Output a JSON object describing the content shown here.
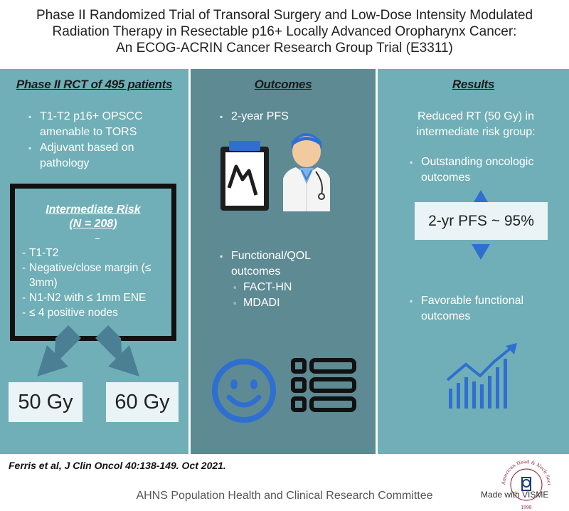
{
  "title": {
    "line1": "Phase II Randomized Trial of Transoral Surgery and Low-Dose Intensity Modulated",
    "line2": "Radiation Therapy in Resectable p16+ Locally Advanced Oropharynx Cancer:",
    "line3": "An ECOG-ACRIN Cancer Research Group Trial (E3311)"
  },
  "left": {
    "heading": "Phase II RCT of 495 patients",
    "bullets": [
      "T1-T2 p16+ OPSCC amenable to TORS",
      "Adjuvant based on pathology"
    ],
    "risk": {
      "heading_line1": "Intermediate Risk",
      "heading_line2": "(N = 208)",
      "items": [
        "T1-T2",
        "Negative/close margin (≤ 3mm)",
        "N1-N2 with ≤ 1mm ENE",
        "≤ 4 positive nodes"
      ]
    },
    "dose_low": "50 Gy",
    "dose_high": "60 Gy"
  },
  "middle": {
    "heading": "Outcomes",
    "bullet1": "2-year PFS",
    "bullet2": "Functional/QOL outcomes",
    "sub_items": [
      "FACT-HN",
      "MDADI"
    ],
    "icons": [
      "clipboard-chart-icon",
      "doctor-icon",
      "smiley-icon",
      "checklist-icon"
    ]
  },
  "right": {
    "heading": "Results",
    "intro": "Reduced RT (50 Gy) in intermediate risk group:",
    "bullet1": "Outstanding oncologic outcomes",
    "pfs": "2-yr PFS ~ 95%",
    "bullet2": "Favorable functional outcomes",
    "icons": [
      "growth-chart-icon"
    ]
  },
  "citation": "Ferris et al, J Clin Oncol 40:138-149. Oct 2021.",
  "footer": "AHNS Population Health and Clinical Research Committee",
  "made_with": "Made with VISME",
  "logo": {
    "text": "American Head & Neck Society",
    "year": "1998"
  },
  "colors": {
    "panel_light": "#70afb7",
    "panel_dark": "#5e8a94",
    "icon_blue": "#3b7bd4",
    "box_light": "#eaf4f6"
  }
}
